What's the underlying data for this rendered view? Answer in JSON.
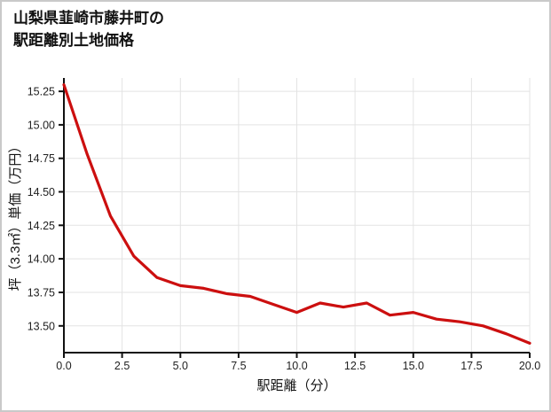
{
  "page": {
    "title_line1": "山梨県韮崎市藤井町の",
    "title_line2": "駅距離別土地価格"
  },
  "chart_data": {
    "type": "line",
    "title": "山梨県韮崎市藤井町の駅距離別土地価格",
    "xlabel": "駅距離（分）",
    "ylabel": "坪（3.3㎡）単価（万円）",
    "x": [
      0,
      1,
      2,
      3,
      4,
      5,
      6,
      7,
      8,
      9,
      10,
      11,
      12,
      13,
      14,
      15,
      16,
      17,
      18,
      19,
      20
    ],
    "values": [
      15.3,
      14.78,
      14.32,
      14.02,
      13.86,
      13.8,
      13.78,
      13.74,
      13.72,
      13.66,
      13.6,
      13.67,
      13.64,
      13.67,
      13.58,
      13.6,
      13.55,
      13.53,
      13.5,
      13.44,
      13.37
    ],
    "xlim": [
      0,
      20
    ],
    "ylim": [
      13.3,
      15.35
    ],
    "x_ticks": [
      "0.0",
      "2.5",
      "5.0",
      "7.5",
      "10.0",
      "12.5",
      "15.0",
      "17.5",
      "20.0"
    ],
    "y_ticks": [
      "15.25",
      "15.00",
      "14.75",
      "14.50",
      "14.25",
      "14.00",
      "13.75",
      "13.50"
    ],
    "grid": true,
    "legend": "none",
    "line_color": "#cc0f0f",
    "grid_color": "#e3e3e3",
    "axis_color": "#111111"
  }
}
